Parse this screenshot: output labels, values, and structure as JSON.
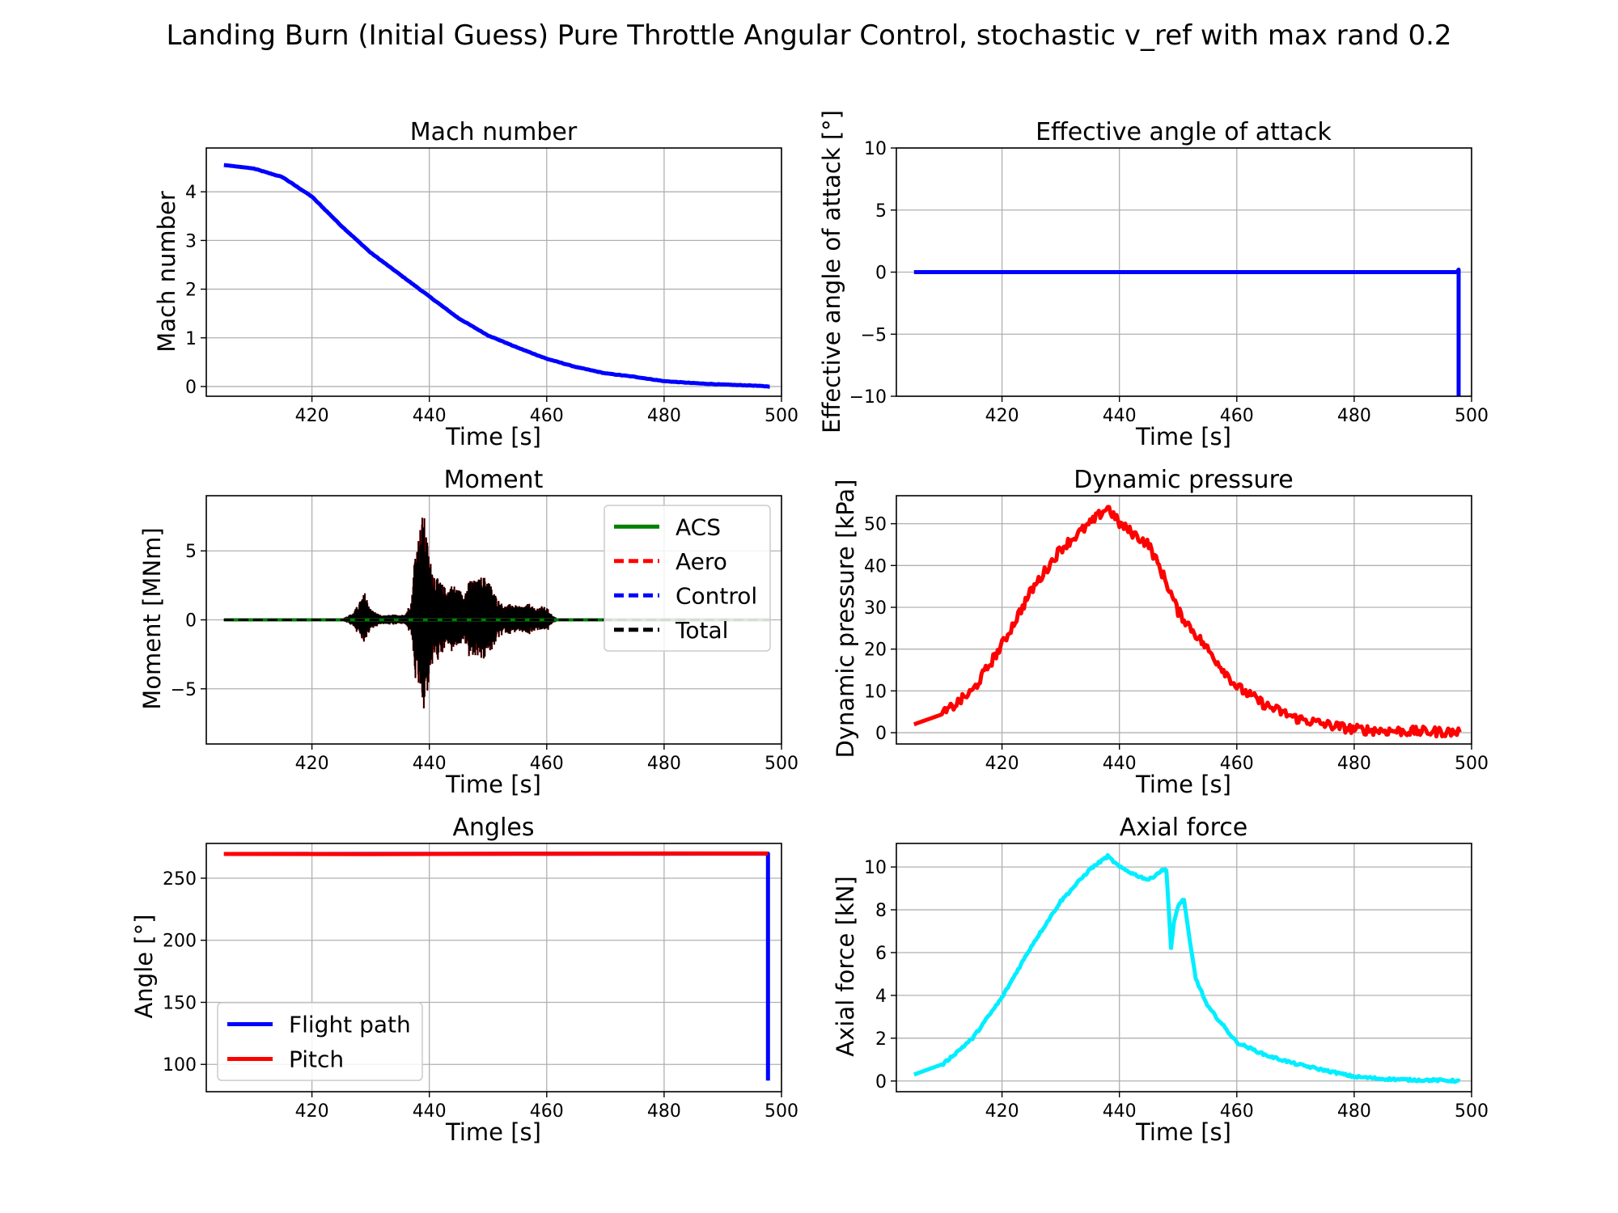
{
  "suptitle": "Landing Burn (Initial Guess) Pure Throttle Angular Control, stochastic v_ref with max rand 0.2",
  "chart_data": [
    {
      "id": "mach",
      "type": "line",
      "title": "Mach number",
      "xlabel": "Time [s]",
      "ylabel": "Mach number",
      "xlim": [
        402,
        500
      ],
      "ylim": [
        -0.2,
        4.9
      ],
      "xticks": [
        420,
        440,
        460,
        480,
        500
      ],
      "yticks": [
        0,
        1,
        2,
        3,
        4
      ],
      "grid": true,
      "series": [
        {
          "color": "#0000ff",
          "dash": "",
          "width": 5,
          "noise": 0.012,
          "x": [
            405,
            410,
            415,
            420,
            425,
            430,
            435,
            440,
            445,
            450,
            455,
            460,
            465,
            470,
            475,
            480,
            485,
            490,
            495,
            498
          ],
          "y": [
            4.55,
            4.48,
            4.3,
            3.9,
            3.3,
            2.75,
            2.3,
            1.85,
            1.4,
            1.05,
            0.8,
            0.57,
            0.4,
            0.27,
            0.2,
            0.11,
            0.07,
            0.04,
            0.02,
            0.0
          ]
        }
      ]
    },
    {
      "id": "aoa",
      "type": "line",
      "title": "Effective angle of attack",
      "xlabel": "Time [s]",
      "ylabel": "Effective angle of attack [°]",
      "xlim": [
        402,
        500
      ],
      "ylim": [
        -10,
        10
      ],
      "xticks": [
        420,
        440,
        460,
        480,
        500
      ],
      "yticks": [
        -10,
        -5,
        0,
        5,
        10
      ],
      "ytick_labels": [
        "−10",
        "−5",
        "0",
        "5",
        "10"
      ],
      "grid": true,
      "series": [
        {
          "color": "#0000ff",
          "dash": "",
          "width": 5,
          "noise": 0,
          "x": [
            405,
            497.5,
            497.8,
            497.8
          ],
          "y": [
            0,
            0,
            0.2,
            -12
          ]
        }
      ]
    },
    {
      "id": "moment",
      "type": "line",
      "title": "Moment",
      "xlabel": "Time [s]",
      "ylabel": "Moment [MNm]",
      "xlim": [
        402,
        500
      ],
      "ylim": [
        -9,
        9
      ],
      "xticks": [
        420,
        440,
        460,
        480,
        500
      ],
      "yticks": [
        -5,
        0,
        5
      ],
      "ytick_labels": [
        "−5",
        "0",
        "5"
      ],
      "grid": true,
      "legend": {
        "position": "top-right"
      },
      "series": [
        {
          "name": "ACS",
          "color": "#008000",
          "dash": "",
          "width": 4,
          "noise": 0,
          "x": [
            405,
            498
          ],
          "y": [
            0,
            0
          ]
        },
        {
          "name": "Aero",
          "color": "#ff0000",
          "dash": "12 6",
          "width": 3,
          "noise": 0,
          "x": [
            405,
            498
          ],
          "y": [
            0,
            0
          ]
        },
        {
          "name": "Control",
          "color": "#0000ff",
          "dash": "12 6",
          "width": 3,
          "noise": 0,
          "x": [
            405,
            498
          ],
          "y": [
            0,
            0
          ]
        },
        {
          "name": "Total",
          "color": "#000000",
          "dash": "12 6",
          "width": 3,
          "noise": 0,
          "x": [
            405,
            498
          ],
          "y": [
            0,
            0
          ]
        }
      ],
      "oscillation": {
        "color": "#000000",
        "edge_color": "#ff0000",
        "x_range": [
          425,
          462
        ],
        "envelope_x": [
          425,
          427,
          428,
          429,
          430,
          431,
          432,
          434,
          435,
          436,
          437,
          437.5,
          438,
          439,
          440,
          441,
          442,
          443,
          444,
          445,
          446,
          447,
          448,
          449,
          450,
          451,
          452,
          453,
          454,
          455,
          456,
          457,
          458,
          459,
          460,
          461,
          462
        ],
        "envelope_y": [
          0.05,
          0.5,
          1.2,
          2.0,
          0.8,
          0.5,
          0.3,
          0.4,
          0.3,
          0.5,
          1.5,
          4.8,
          5.8,
          8.0,
          4.5,
          3.2,
          2.7,
          2.2,
          2.6,
          2.2,
          2.0,
          3.0,
          2.8,
          3.2,
          3.0,
          2.0,
          1.3,
          1.0,
          1.2,
          1.0,
          1.0,
          1.2,
          0.8,
          1.0,
          0.9,
          0.3,
          0.05
        ]
      }
    },
    {
      "id": "qdyn",
      "type": "line",
      "title": "Dynamic pressure",
      "xlabel": "Time [s]",
      "ylabel": "Dynamic pressure [kPa]",
      "xlim": [
        402,
        500
      ],
      "ylim": [
        -2.7,
        56.7
      ],
      "xticks": [
        420,
        440,
        460,
        480,
        500
      ],
      "yticks": [
        0,
        10,
        20,
        30,
        40,
        50
      ],
      "grid": true,
      "series": [
        {
          "color": "#ff0000",
          "dash": "",
          "width": 5,
          "noise": 0.25,
          "x": [
            405,
            410,
            415,
            420,
            425,
            430,
            435,
            438,
            440,
            445,
            448,
            450,
            455,
            460,
            465,
            470,
            475,
            480,
            485,
            490,
            495,
            498
          ],
          "y": [
            2,
            4.5,
            10,
            21,
            34,
            44,
            50,
            54,
            50,
            45,
            36,
            29,
            20,
            11,
            6.5,
            3.5,
            2,
            0.8,
            0.5,
            0.3,
            0.2,
            0.1
          ]
        }
      ]
    },
    {
      "id": "angles",
      "type": "line",
      "title": "Angles",
      "xlabel": "Time [s]",
      "ylabel": "Angle [°]",
      "xlim": [
        402,
        500
      ],
      "ylim": [
        78,
        278
      ],
      "xticks": [
        420,
        440,
        460,
        480,
        500
      ],
      "yticks": [
        100,
        150,
        200,
        250
      ],
      "grid": true,
      "legend": {
        "position": "bottom-left"
      },
      "series": [
        {
          "name": "Flight path",
          "color": "#0000ff",
          "dash": "",
          "width": 5,
          "noise": 0,
          "x": [
            405,
            497.6,
            497.7,
            497.7
          ],
          "y": [
            269.5,
            269.8,
            269.8,
            87
          ]
        },
        {
          "name": "Pitch",
          "color": "#ff0000",
          "dash": "",
          "width": 5,
          "noise": 0,
          "x": [
            405,
            430,
            460,
            480,
            497.7
          ],
          "y": [
            269.5,
            269.4,
            269.7,
            269.9,
            269.9
          ]
        }
      ]
    },
    {
      "id": "axial",
      "type": "line",
      "title": "Axial force",
      "xlabel": "Time [s]",
      "ylabel": "Axial force [kN]",
      "xlim": [
        402,
        500
      ],
      "ylim": [
        -0.5,
        11.1
      ],
      "xticks": [
        420,
        440,
        460,
        480,
        500
      ],
      "yticks": [
        0,
        2,
        4,
        6,
        8,
        10
      ],
      "grid": true,
      "series": [
        {
          "color": "#00eeff",
          "dash": "",
          "width": 5,
          "noise": 0.06,
          "x": [
            405,
            410,
            415,
            420,
            425,
            430,
            435,
            438,
            440,
            443,
            445,
            447,
            448,
            448.8,
            449.3,
            450,
            451,
            452,
            453,
            455,
            460,
            465,
            470,
            475,
            480,
            485,
            490,
            495,
            498
          ],
          "y": [
            0.3,
            0.8,
            2.0,
            3.9,
            6.3,
            8.4,
            9.9,
            10.5,
            10.0,
            9.6,
            9.4,
            9.8,
            9.9,
            6.2,
            7.4,
            8.2,
            8.5,
            6.5,
            4.8,
            3.5,
            1.8,
            1.2,
            0.8,
            0.5,
            0.2,
            0.1,
            0.05,
            0.03,
            0.0
          ]
        }
      ]
    }
  ]
}
